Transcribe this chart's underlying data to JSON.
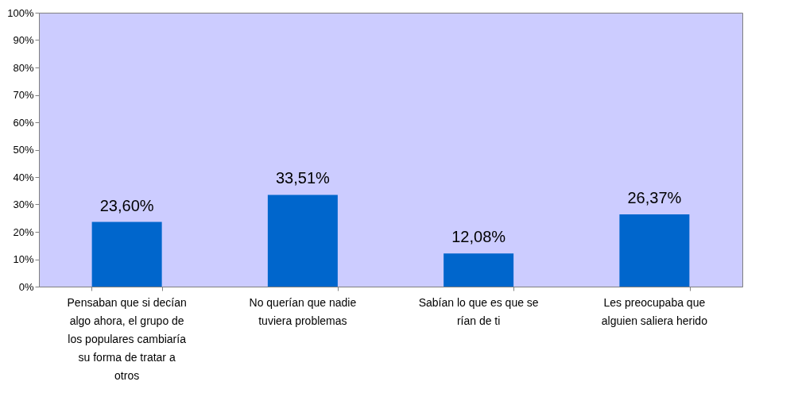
{
  "chart_data": {
    "type": "bar",
    "categories": [
      "Pensaban que si decían algo ahora, el grupo de los populares cambiaría su forma de tratar a otros",
      "No querían que nadie tuviera problemas",
      "Sabían lo que es que se rían de ti",
      "Les preocupaba que alguien saliera herido"
    ],
    "values": [
      23.6,
      33.51,
      12.08,
      26.37
    ],
    "value_labels": [
      "23,60%",
      "33,51%",
      "12,08%",
      "26,37%"
    ],
    "color": "#0066cc",
    "ylim": [
      0,
      100
    ],
    "yticks": [
      {
        "value": 0,
        "label": "0%"
      },
      {
        "value": 10,
        "label": "10%"
      },
      {
        "value": 20,
        "label": "20%"
      },
      {
        "value": 30,
        "label": "30%"
      },
      {
        "value": 40,
        "label": "40%"
      },
      {
        "value": 50,
        "label": "50%"
      },
      {
        "value": 60,
        "label": "60%"
      },
      {
        "value": 70,
        "label": "70%"
      },
      {
        "value": 80,
        "label": "80%"
      },
      {
        "value": 90,
        "label": "90%"
      },
      {
        "value": 100,
        "label": "100%"
      }
    ],
    "grid": false
  }
}
